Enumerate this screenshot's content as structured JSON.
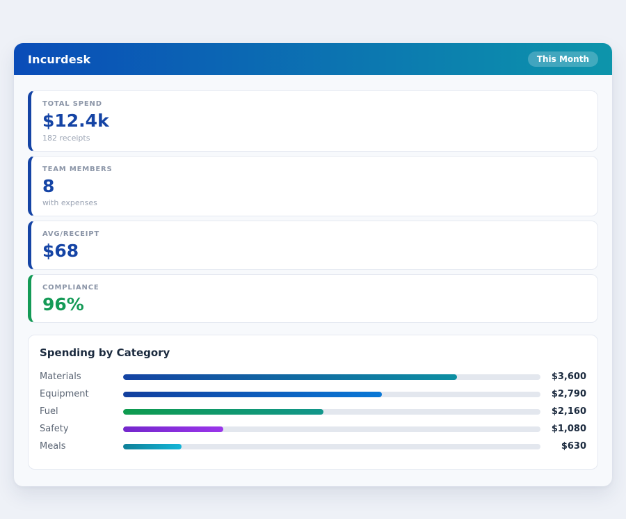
{
  "header": {
    "app_title": "Incurdesk",
    "period_badge": "This Month",
    "gradient_from": "#0a4cb8",
    "gradient_to": "#0d95ab"
  },
  "stats": [
    {
      "label": "TOTAL SPEND",
      "value": "$12.4k",
      "sub": "182 receipts",
      "accent": "#1544a5"
    },
    {
      "label": "TEAM MEMBERS",
      "value": "8",
      "sub": "with expenses",
      "accent": "#1544a5"
    },
    {
      "label": "AVG/RECEIPT",
      "value": "$68",
      "sub": "",
      "accent": "#1544a5"
    },
    {
      "label": "COMPLIANCE",
      "value": "96%",
      "sub": "",
      "accent": "#149a56"
    }
  ],
  "category_section": {
    "title": "Spending by Category",
    "rows": [
      {
        "label": "Materials",
        "value_text": "$3,600",
        "value": 3600,
        "percent": 80,
        "color_from": "#1443a3",
        "color_to": "#0d8fa2"
      },
      {
        "label": "Equipment",
        "value_text": "$2,790",
        "value": 2790,
        "percent": 62,
        "color_from": "#123f9e",
        "color_to": "#0a78d6"
      },
      {
        "label": "Fuel",
        "value_text": "$2,160",
        "value": 2160,
        "percent": 48,
        "color_from": "#0e9b4e",
        "color_to": "#12968b"
      },
      {
        "label": "Safety",
        "value_text": "$1,080",
        "value": 1080,
        "percent": 24,
        "color_from": "#7427cc",
        "color_to": "#9a35ea"
      },
      {
        "label": "Meals",
        "value_text": "$630",
        "value": 630,
        "percent": 14,
        "color_from": "#0f8098",
        "color_to": "#14b6d8"
      }
    ],
    "track_color": "#e3e7ee",
    "scale_max": 4500
  },
  "chart_data": {
    "type": "bar",
    "orientation": "horizontal",
    "title": "Spending by Category",
    "categories": [
      "Materials",
      "Equipment",
      "Fuel",
      "Safety",
      "Meals"
    ],
    "values": [
      3600,
      2790,
      2160,
      1080,
      630
    ],
    "value_labels": [
      "$3,600",
      "$2,790",
      "$2,160",
      "$1,080",
      "$630"
    ],
    "xlim": [
      0,
      4500
    ],
    "legend": false,
    "grid": false
  }
}
